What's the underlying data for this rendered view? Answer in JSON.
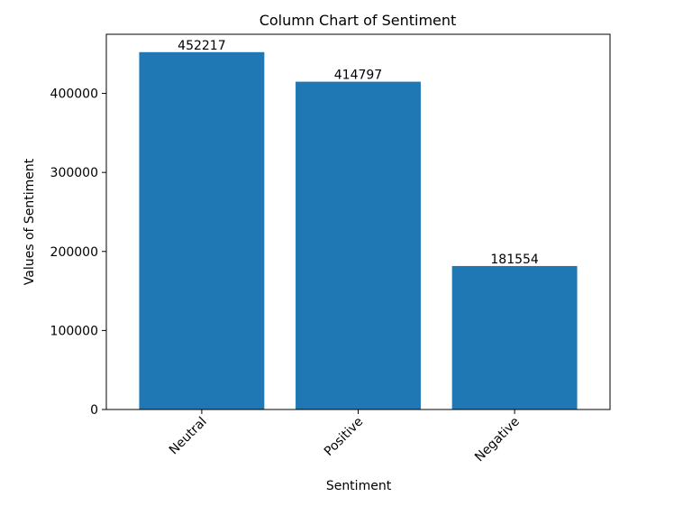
{
  "chart_data": {
    "type": "bar",
    "title": "Column Chart of Sentiment",
    "xlabel": "Sentiment",
    "ylabel": "Values of Sentiment",
    "categories": [
      "Neutral",
      "Positive",
      "Negative"
    ],
    "values": [
      452217,
      414797,
      181554
    ],
    "data_labels": [
      "452217",
      "414797",
      "181554"
    ],
    "ylim": [
      0,
      474828
    ],
    "yticks": [
      0,
      100000,
      200000,
      300000,
      400000
    ],
    "ytick_labels": [
      "0",
      "100000",
      "200000",
      "300000",
      "400000"
    ],
    "xtick_rotation": 45,
    "grid": false,
    "bar_color": "#1f77b4"
  }
}
